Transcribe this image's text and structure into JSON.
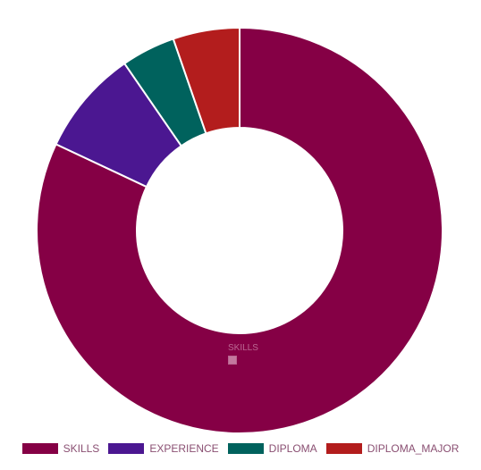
{
  "chart_data": {
    "type": "pie",
    "donut": true,
    "categories": [
      "SKILLS",
      "EXPERIENCE",
      "DIPLOMA",
      "DIPLOMA_MAJOR"
    ],
    "values": [
      82,
      8.4,
      4.3,
      5.3
    ],
    "colors": [
      "#850045",
      "#4b1791",
      "#00625d",
      "#b31d1d"
    ],
    "legend": "bottom",
    "tooltip": {
      "label": "SKILLS",
      "value": ""
    }
  }
}
